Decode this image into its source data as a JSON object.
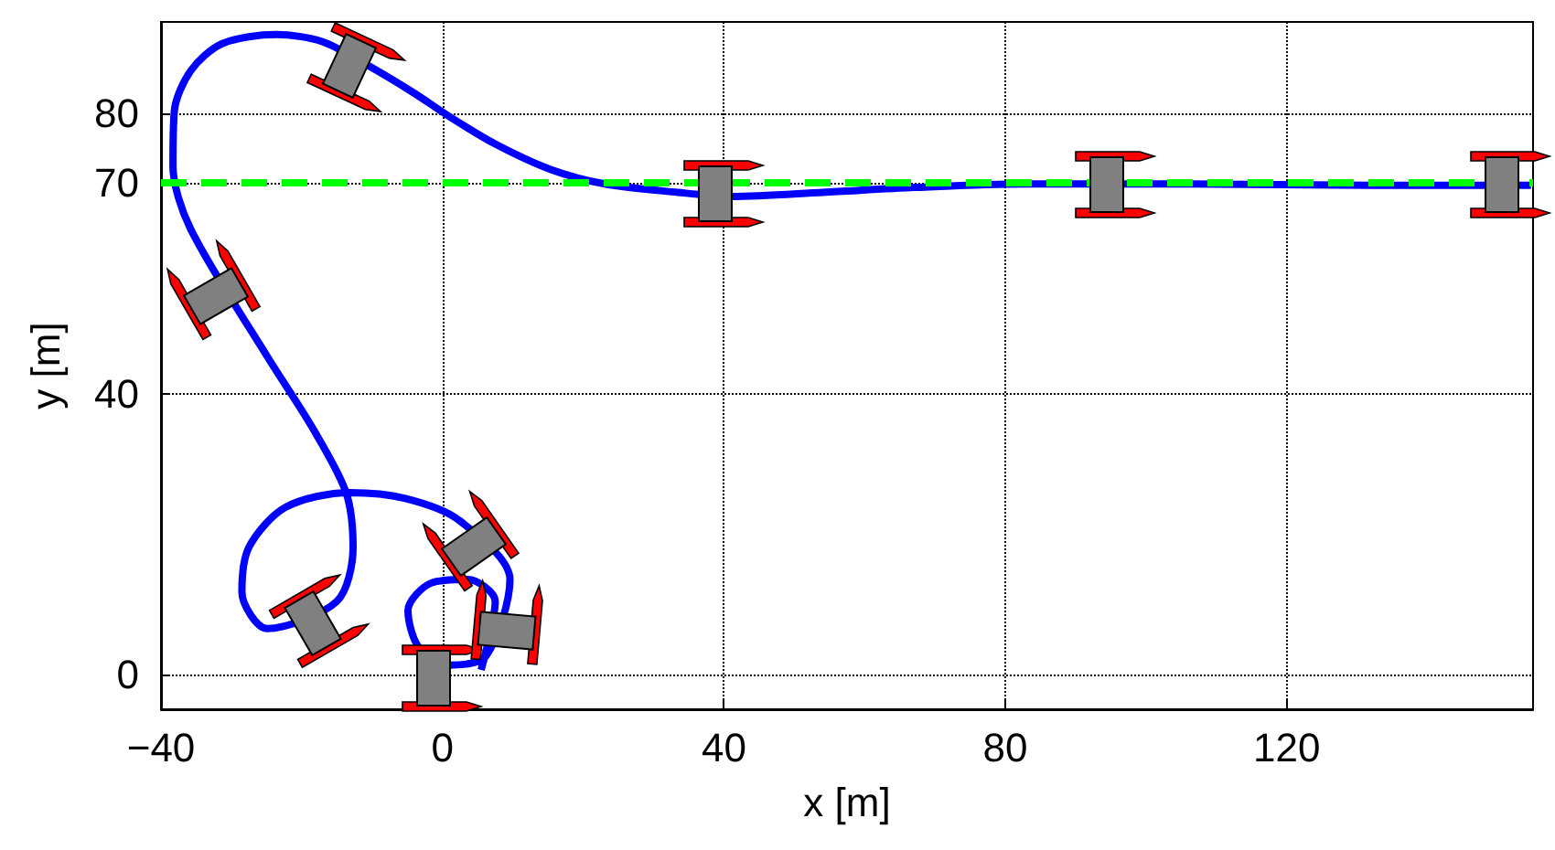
{
  "chart_data": {
    "type": "line",
    "xlabel": "x [m]",
    "ylabel": "y [m]",
    "x": [
      5.5,
      7.5,
      3.6,
      -1.6,
      -4.9,
      -3.4,
      1,
      6.2,
      9.6,
      2.3,
      -5.4,
      -13.2,
      -22.3,
      -27.5,
      -28.5,
      -24.9,
      -15,
      -12.7,
      -13.7,
      -18.4,
      -24.9,
      -35.8,
      -38.3,
      -38.1,
      -35.8,
      -31.3,
      -23.6,
      -17.1,
      -10.6,
      -4.1,
      1,
      7.5,
      15.3,
      23.1,
      33.4,
      41.2,
      54.1,
      67.1,
      82.6,
      106,
      131.9,
      154.7
    ],
    "series": [
      {
        "color": "#0000ff",
        "values": [
          0.6,
          10.4,
          13.5,
          13,
          9.1,
          3.9,
          1.3,
          2.6,
          13.5,
          22,
          25.1,
          25.9,
          23.8,
          18.1,
          11.7,
          6.5,
          10.4,
          18.1,
          25.9,
          35,
          45.3,
          63.5,
          72.5,
          80.3,
          86,
          89.9,
          91.2,
          90.2,
          86.8,
          82.9,
          79.5,
          75.6,
          72,
          69.9,
          68.7,
          68.1,
          68.7,
          69.4,
          69.9,
          69.9,
          69.7,
          69.7
        ]
      }
    ],
    "xlim": [
      -40,
      155
    ],
    "xticks": [
      {
        "value": -40,
        "label": "−40"
      },
      0,
      40,
      80,
      120
    ],
    "ylim": [
      -5,
      93
    ],
    "yticks": [
      0,
      40,
      70,
      80
    ],
    "ref_lines": [
      {
        "axis": "y",
        "value": 70,
        "color": "#00ff00",
        "line_style": "dashed"
      }
    ],
    "grid": true,
    "marker": "none",
    "line_style": "solid"
  }
}
